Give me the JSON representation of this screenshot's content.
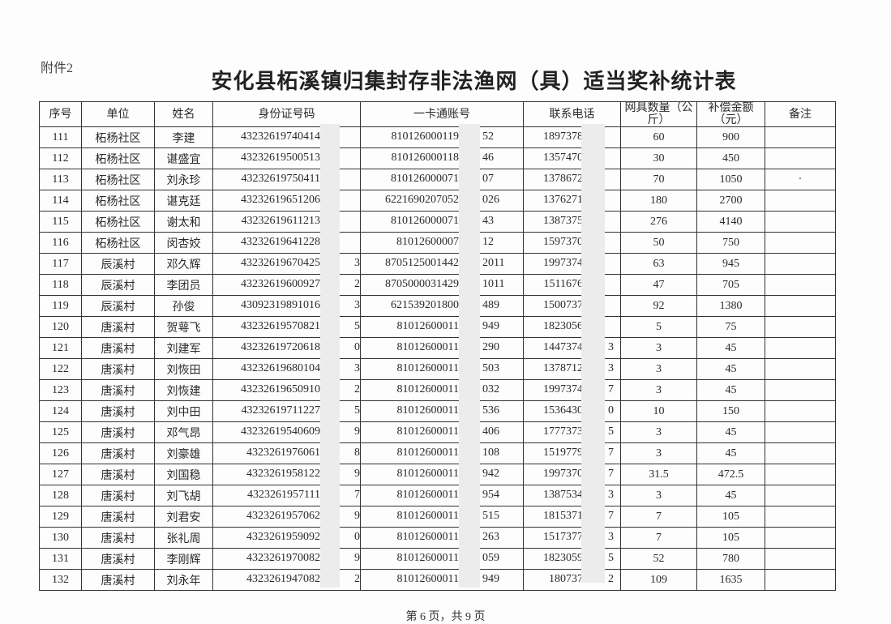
{
  "attachment_label": "附件2",
  "title": "安化县柘溪镇归集封存非法渔网（具）适当奖补统计表",
  "headers": {
    "no": "序号",
    "unit": "单位",
    "name": "姓名",
    "id": "身份证号码",
    "account": "一卡通账号",
    "phone": "联系电话",
    "qty": "网具数量（公斤）",
    "amount": "补偿金额（元）",
    "remark": "备注"
  },
  "rows": [
    {
      "no": "111",
      "unit": "柘杨社区",
      "name": "李建",
      "id_pre": "43232619740414",
      "id_suf": "",
      "acc_pre": "810126000119",
      "acc_suf": "52",
      "ph_pre": "1897378",
      "ph_suf": "",
      "qty": "60",
      "amount": "900",
      "remark": ""
    },
    {
      "no": "112",
      "unit": "柘杨社区",
      "name": "谌盛宜",
      "id_pre": "43232619500513",
      "id_suf": "",
      "acc_pre": "810126000118",
      "acc_suf": "46",
      "ph_pre": "1357470",
      "ph_suf": "",
      "qty": "30",
      "amount": "450",
      "remark": ""
    },
    {
      "no": "113",
      "unit": "柘杨社区",
      "name": "刘永珍",
      "id_pre": "43232619750411",
      "id_suf": "",
      "acc_pre": "810126000071",
      "acc_suf": "07",
      "ph_pre": "1378672",
      "ph_suf": "",
      "qty": "70",
      "amount": "1050",
      "remark": "·"
    },
    {
      "no": "114",
      "unit": "柘杨社区",
      "name": "谌克廷",
      "id_pre": "43232619651206",
      "id_suf": "",
      "acc_pre": "6221690207052",
      "acc_suf": "026",
      "ph_pre": "1376271",
      "ph_suf": "",
      "qty": "180",
      "amount": "2700",
      "remark": ""
    },
    {
      "no": "115",
      "unit": "柘杨社区",
      "name": "谢太和",
      "id_pre": "43232619611213",
      "id_suf": "",
      "acc_pre": "810126000071",
      "acc_suf": "43",
      "ph_pre": "1387375",
      "ph_suf": "",
      "qty": "276",
      "amount": "4140",
      "remark": ""
    },
    {
      "no": "116",
      "unit": "柘杨社区",
      "name": "闵杏姣",
      "id_pre": "43232619641228",
      "id_suf": "",
      "acc_pre": "81012600007",
      "acc_suf": "12",
      "ph_pre": "1597370",
      "ph_suf": "",
      "qty": "50",
      "amount": "750",
      "remark": ""
    },
    {
      "no": "117",
      "unit": "辰溪村",
      "name": "邓久辉",
      "id_pre": "43232619670425",
      "id_suf": "3",
      "acc_pre": "8705125001442",
      "acc_suf": "2011",
      "ph_pre": "1997374",
      "ph_suf": "",
      "qty": "63",
      "amount": "945",
      "remark": ""
    },
    {
      "no": "118",
      "unit": "辰溪村",
      "name": "李团员",
      "id_pre": "43232619600927",
      "id_suf": "2",
      "acc_pre": "8705000031429",
      "acc_suf": "1011",
      "ph_pre": "1511676",
      "ph_suf": "",
      "qty": "47",
      "amount": "705",
      "remark": ""
    },
    {
      "no": "119",
      "unit": "辰溪村",
      "name": "孙俊",
      "id_pre": "43092319891016",
      "id_suf": "3",
      "acc_pre": "621539201800",
      "acc_suf": "489",
      "ph_pre": "1500737",
      "ph_suf": "",
      "qty": "92",
      "amount": "1380",
      "remark": ""
    },
    {
      "no": "120",
      "unit": "唐溪村",
      "name": "贺萼飞",
      "id_pre": "43232619570821",
      "id_suf": "5",
      "acc_pre": "81012600011",
      "acc_suf": "949",
      "ph_pre": "1823056",
      "ph_suf": "",
      "qty": "5",
      "amount": "75",
      "remark": ""
    },
    {
      "no": "121",
      "unit": "唐溪村",
      "name": "刘建军",
      "id_pre": "43232619720618",
      "id_suf": "0",
      "acc_pre": "81012600011",
      "acc_suf": "290",
      "ph_pre": "1447374",
      "ph_suf": "3",
      "qty": "3",
      "amount": "45",
      "remark": ""
    },
    {
      "no": "122",
      "unit": "唐溪村",
      "name": "刘恢田",
      "id_pre": "43232619680104",
      "id_suf": "3",
      "acc_pre": "81012600011",
      "acc_suf": "503",
      "ph_pre": "1378712",
      "ph_suf": "3",
      "qty": "3",
      "amount": "45",
      "remark": ""
    },
    {
      "no": "123",
      "unit": "唐溪村",
      "name": "刘恢建",
      "id_pre": "43232619650910",
      "id_suf": "2",
      "acc_pre": "81012600011",
      "acc_suf": "032",
      "ph_pre": "1997374",
      "ph_suf": "7",
      "qty": "3",
      "amount": "45",
      "remark": ""
    },
    {
      "no": "124",
      "unit": "唐溪村",
      "name": "刘中田",
      "id_pre": "43232619711227",
      "id_suf": "5",
      "acc_pre": "81012600011",
      "acc_suf": "536",
      "ph_pre": "1536430",
      "ph_suf": "0",
      "qty": "10",
      "amount": "150",
      "remark": ""
    },
    {
      "no": "125",
      "unit": "唐溪村",
      "name": "邓气昂",
      "id_pre": "43232619540609",
      "id_suf": "9",
      "acc_pre": "81012600011",
      "acc_suf": "406",
      "ph_pre": "1777373",
      "ph_suf": "5",
      "qty": "3",
      "amount": "45",
      "remark": ""
    },
    {
      "no": "126",
      "unit": "唐溪村",
      "name": "刘豪雄",
      "id_pre": "4323261976061",
      "id_suf": "8",
      "acc_pre": "81012600011",
      "acc_suf": "108",
      "ph_pre": "1519779",
      "ph_suf": "7",
      "qty": "3",
      "amount": "45",
      "remark": ""
    },
    {
      "no": "127",
      "unit": "唐溪村",
      "name": "刘国稳",
      "id_pre": "4323261958122",
      "id_suf": "9",
      "acc_pre": "81012600011",
      "acc_suf": "942",
      "ph_pre": "1997370",
      "ph_suf": "7",
      "qty": "31.5",
      "amount": "472.5",
      "remark": ""
    },
    {
      "no": "128",
      "unit": "唐溪村",
      "name": "刘飞胡",
      "id_pre": "4323261957111",
      "id_suf": "7",
      "acc_pre": "81012600011",
      "acc_suf": "954",
      "ph_pre": "1387534",
      "ph_suf": "3",
      "qty": "3",
      "amount": "45",
      "remark": ""
    },
    {
      "no": "129",
      "unit": "唐溪村",
      "name": "刘君安",
      "id_pre": "4323261957062",
      "id_suf": "9",
      "acc_pre": "81012600011",
      "acc_suf": "515",
      "ph_pre": "1815371",
      "ph_suf": "7",
      "qty": "7",
      "amount": "105",
      "remark": ""
    },
    {
      "no": "130",
      "unit": "唐溪村",
      "name": "张礼周",
      "id_pre": "4323261959092",
      "id_suf": "0",
      "acc_pre": "81012600011",
      "acc_suf": "263",
      "ph_pre": "1517377",
      "ph_suf": "3",
      "qty": "7",
      "amount": "105",
      "remark": ""
    },
    {
      "no": "131",
      "unit": "唐溪村",
      "name": "李刚辉",
      "id_pre": "4323261970082",
      "id_suf": "9",
      "acc_pre": "81012600011",
      "acc_suf": "059",
      "ph_pre": "1823059",
      "ph_suf": "5",
      "qty": "52",
      "amount": "780",
      "remark": ""
    },
    {
      "no": "132",
      "unit": "唐溪村",
      "name": "刘永年",
      "id_pre": "4323261947082",
      "id_suf": "2",
      "acc_pre": "81012600011",
      "acc_suf": "949",
      "ph_pre": "180737",
      "ph_suf": "2",
      "qty": "109",
      "amount": "1635",
      "remark": ""
    }
  ],
  "footer": "第 6 页，共 9 页"
}
